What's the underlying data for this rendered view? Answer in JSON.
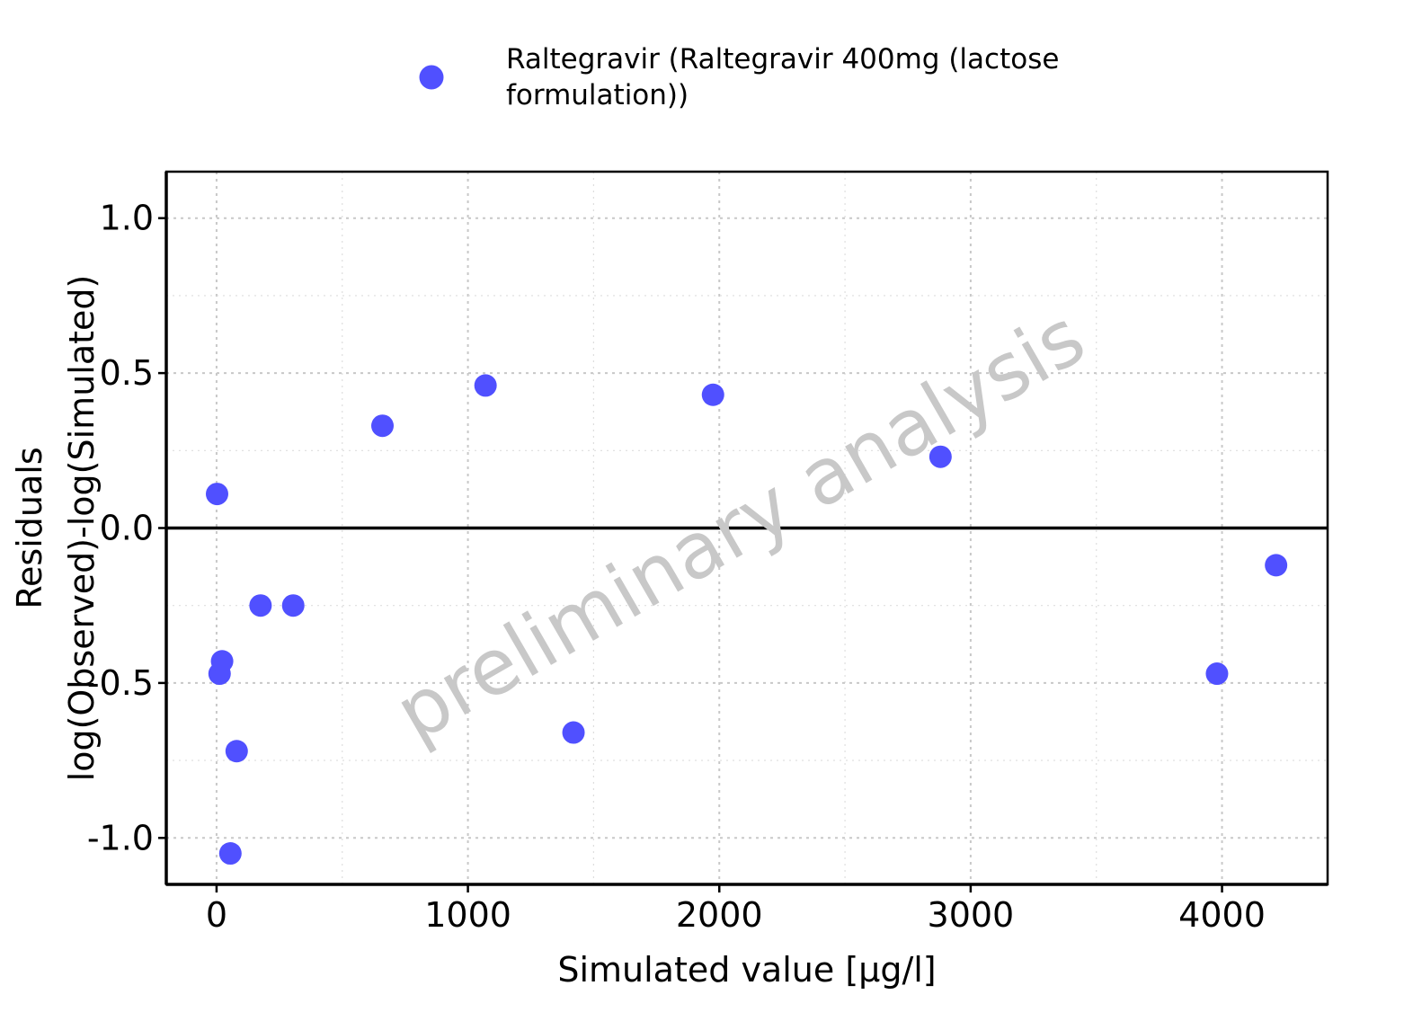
{
  "chart_data": {
    "type": "scatter",
    "title": "",
    "xlabel": "Simulated value [µg/l]",
    "ylabel_lines": [
      "Residuals",
      "log(Observed)-log(Simulated)"
    ],
    "xlim": [
      -200,
      4420
    ],
    "ylim": [
      -1.15,
      1.15
    ],
    "x_ticks": [
      0,
      1000,
      2000,
      3000,
      4000
    ],
    "x_tick_labels": [
      "0",
      "1000",
      "2000",
      "3000",
      "4000"
    ],
    "y_ticks": [
      -1.0,
      -0.5,
      0.0,
      0.5,
      1.0
    ],
    "y_tick_labels": [
      "-1.0",
      "-0.5",
      "0.0",
      "0.5",
      "1.0"
    ],
    "grid": true,
    "reference_line_y": 0,
    "legend_position": "top",
    "watermark": "preliminary analysis",
    "series": [
      {
        "name": "Raltegravir (Raltegravir 400mg (lactose formulation))",
        "legend_lines": [
          "Raltegravir (Raltegravir 400mg (lactose",
          "formulation))"
        ],
        "color": "#5050ff",
        "points": [
          {
            "x": 2,
            "y": 0.11
          },
          {
            "x": 12,
            "y": -0.47
          },
          {
            "x": 22,
            "y": -0.43
          },
          {
            "x": 55,
            "y": -1.05
          },
          {
            "x": 80,
            "y": -0.72
          },
          {
            "x": 175,
            "y": -0.25
          },
          {
            "x": 305,
            "y": -0.25
          },
          {
            "x": 660,
            "y": 0.33
          },
          {
            "x": 1070,
            "y": 0.46
          },
          {
            "x": 1420,
            "y": -0.66
          },
          {
            "x": 1975,
            "y": 0.43
          },
          {
            "x": 2880,
            "y": 0.23
          },
          {
            "x": 3980,
            "y": -0.47
          },
          {
            "x": 4215,
            "y": -0.12
          }
        ]
      }
    ]
  }
}
